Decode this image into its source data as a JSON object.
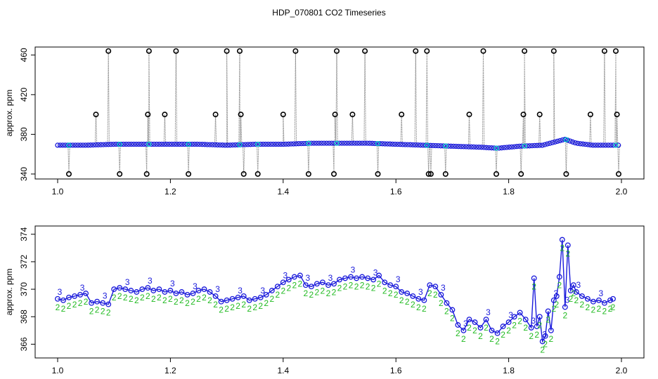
{
  "title": "HDP_070801  CO2 Timeseries",
  "chart_data": [
    {
      "type": "scatter",
      "panel": "top",
      "xlabel": "",
      "ylabel": "approx. ppm",
      "xlim": [
        1.0,
        2.0
      ],
      "ylim": [
        335,
        468
      ],
      "xticks": [
        "1.0",
        "1.2",
        "1.4",
        "1.6",
        "1.8",
        "2.0"
      ],
      "yticks": [
        "340",
        "380",
        "420",
        "460"
      ],
      "grid": false,
      "colors": {
        "line": "#888888",
        "points": "#1a1adb",
        "outline": "#000000",
        "cyan": "#00c8c8"
      },
      "base_line": {
        "x": [
          1.0,
          1.05,
          1.1,
          1.15,
          1.2,
          1.25,
          1.3,
          1.35,
          1.4,
          1.45,
          1.5,
          1.55,
          1.6,
          1.65,
          1.7,
          1.75,
          1.78,
          1.82,
          1.86,
          1.88,
          1.9,
          1.92,
          1.95,
          2.0
        ],
        "y": [
          369,
          369,
          370,
          370,
          370,
          370,
          369,
          370,
          370,
          371,
          371,
          371,
          370,
          369,
          368,
          367,
          366,
          368,
          369,
          372,
          375,
          371,
          369,
          369
        ]
      },
      "spikes": {
        "x": [
          1.02,
          1.068,
          1.09,
          1.11,
          1.158,
          1.16,
          1.162,
          1.19,
          1.21,
          1.232,
          1.28,
          1.3,
          1.323,
          1.325,
          1.33,
          1.355,
          1.4,
          1.422,
          1.445,
          1.49,
          1.492,
          1.495,
          1.523,
          1.545,
          1.568,
          1.61,
          1.635,
          1.655,
          1.658,
          1.662,
          1.688,
          1.73,
          1.755,
          1.778,
          1.822,
          1.826,
          1.828,
          1.855,
          1.88,
          1.902,
          1.945,
          1.97,
          1.99,
          1.992,
          1.995
        ],
        "y": [
          340,
          400,
          464,
          340,
          340,
          400,
          464,
          400,
          464,
          340,
          400,
          464,
          464,
          400,
          340,
          340,
          400,
          464,
          340,
          340,
          400,
          464,
          400,
          464,
          340,
          400,
          464,
          464,
          340,
          340,
          340,
          400,
          464,
          340,
          340,
          400,
          464,
          400,
          464,
          340,
          400,
          464,
          464,
          400,
          340
        ]
      }
    },
    {
      "type": "scatter",
      "panel": "bottom",
      "xlabel": "",
      "ylabel": "approx. ppm",
      "xlim": [
        1.0,
        2.0
      ],
      "ylim": [
        365,
        374.6
      ],
      "xticks": [
        "1.0",
        "1.2",
        "1.4",
        "1.6",
        "1.8",
        "2.0"
      ],
      "yticks": [
        "366",
        "368",
        "370",
        "372",
        "374"
      ],
      "grid": false,
      "point_labels": [
        "2",
        "3"
      ],
      "colors": {
        "series_line": "#1a1adb",
        "label_2": "#22bb22",
        "label_3": "#1a1adb",
        "circle": "#1a1adb"
      },
      "series": {
        "x": [
          1.0,
          1.01,
          1.02,
          1.03,
          1.04,
          1.05,
          1.06,
          1.07,
          1.08,
          1.09,
          1.1,
          1.11,
          1.12,
          1.13,
          1.14,
          1.15,
          1.16,
          1.17,
          1.18,
          1.19,
          1.2,
          1.21,
          1.22,
          1.23,
          1.24,
          1.25,
          1.26,
          1.27,
          1.28,
          1.29,
          1.3,
          1.31,
          1.32,
          1.33,
          1.34,
          1.35,
          1.36,
          1.37,
          1.38,
          1.39,
          1.4,
          1.41,
          1.42,
          1.43,
          1.44,
          1.45,
          1.46,
          1.47,
          1.48,
          1.49,
          1.5,
          1.51,
          1.52,
          1.53,
          1.54,
          1.55,
          1.56,
          1.57,
          1.58,
          1.59,
          1.6,
          1.61,
          1.62,
          1.63,
          1.64,
          1.65,
          1.66,
          1.67,
          1.68,
          1.69,
          1.7,
          1.71,
          1.72,
          1.73,
          1.74,
          1.75,
          1.76,
          1.77,
          1.78,
          1.79,
          1.8,
          1.81,
          1.82,
          1.83,
          1.84,
          1.845,
          1.85,
          1.855,
          1.86,
          1.865,
          1.87,
          1.875,
          1.88,
          1.885,
          1.89,
          1.895,
          1.9,
          1.905,
          1.91,
          1.915,
          1.92,
          1.93,
          1.94,
          1.95,
          1.96,
          1.97,
          1.98,
          1.985
        ],
        "y": [
          369.3,
          369.2,
          369.4,
          369.5,
          369.6,
          369.7,
          369.0,
          369.1,
          369.0,
          368.9,
          370.0,
          370.1,
          370.0,
          369.9,
          369.8,
          370.0,
          370.1,
          369.9,
          370.0,
          369.8,
          369.9,
          369.7,
          369.8,
          369.6,
          369.7,
          369.9,
          370.0,
          369.8,
          369.5,
          369.1,
          369.2,
          369.3,
          369.4,
          369.5,
          369.2,
          369.3,
          369.4,
          369.6,
          369.9,
          370.2,
          370.5,
          370.7,
          370.9,
          371.0,
          370.3,
          370.2,
          370.4,
          370.5,
          370.3,
          370.4,
          370.7,
          370.8,
          370.9,
          370.8,
          370.9,
          370.8,
          370.7,
          371.0,
          370.5,
          370.3,
          370.2,
          369.8,
          369.7,
          369.5,
          369.3,
          369.2,
          370.3,
          370.2,
          369.6,
          369.0,
          368.5,
          367.4,
          367.0,
          367.8,
          367.6,
          367.2,
          367.8,
          367.0,
          366.8,
          367.3,
          367.6,
          368.0,
          368.3,
          367.8,
          367.2,
          370.8,
          367.3,
          368.0,
          366.2,
          366.6,
          368.4,
          367.0,
          369.2,
          369.5,
          370.9,
          373.6,
          368.7,
          373.2,
          369.9,
          370.3,
          369.8,
          369.5,
          369.3,
          369.1,
          369.2,
          369.0,
          369.2,
          369.3
        ]
      }
    }
  ]
}
